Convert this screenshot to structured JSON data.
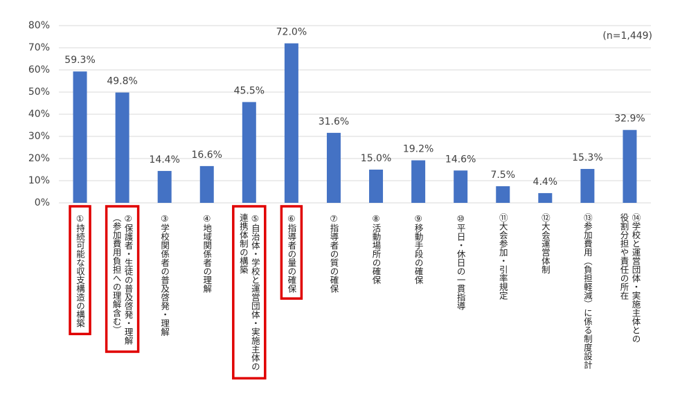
{
  "chart_data": {
    "type": "bar",
    "annotation": "(n=1,449)",
    "categories": [
      [
        "①持続可能な収支構造の構築"
      ],
      [
        "②保護者・生徒の普及啓発・理解",
        "（参加費用負担への理解含む）"
      ],
      [
        "③学校関係者の普及啓発・理解"
      ],
      [
        "④地域関係者の理解"
      ],
      [
        "⑤自治体・学校と運営団体・実施主体の",
        "連携体制の構築"
      ],
      [
        "⑥指導者の量の確保"
      ],
      [
        "⑦指導者の質の確保"
      ],
      [
        "⑧活動場所の確保"
      ],
      [
        "⑨移動手段の確保"
      ],
      [
        "⑩平日・休日の一貫指導"
      ],
      [
        "⑪大会参加・引率規定"
      ],
      [
        "⑫大会運営体制"
      ],
      [
        "⑬参加費用（負担軽減）に係る制度設計"
      ],
      [
        "⑭学校と運営団体・実施主体との",
        "役割分担や責任の所在"
      ]
    ],
    "values": [
      59.3,
      49.8,
      14.4,
      16.6,
      45.5,
      72.0,
      31.6,
      15.0,
      19.2,
      14.6,
      7.5,
      4.4,
      15.3,
      32.9
    ],
    "value_labels": [
      "59.3%",
      "49.8%",
      "14.4%",
      "16.6%",
      "45.5%",
      "72.0%",
      "31.6%",
      "15.0%",
      "19.2%",
      "14.6%",
      "7.5%",
      "4.4%",
      "15.3%",
      "32.9%"
    ],
    "color": "#4472c4",
    "highlight": [
      0,
      1,
      4,
      5
    ],
    "highlight_color": "#e00000",
    "ylim": [
      0,
      80
    ],
    "yticks": [
      {
        "value": 0,
        "label": "0%"
      },
      {
        "value": 10,
        "label": "10%"
      },
      {
        "value": 20,
        "label": "20%"
      },
      {
        "value": 30,
        "label": "30%"
      },
      {
        "value": 40,
        "label": "40%"
      },
      {
        "value": 50,
        "label": "50%"
      },
      {
        "value": 60,
        "label": "60%"
      },
      {
        "value": 70,
        "label": "70%"
      },
      {
        "value": 80,
        "label": "80%"
      }
    ],
    "grid": true
  }
}
